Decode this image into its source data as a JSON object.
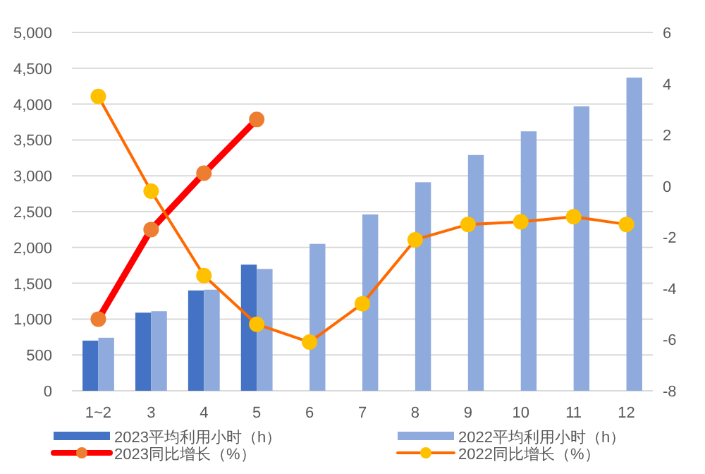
{
  "chart_data": {
    "type": "bar",
    "categories": [
      "1~2",
      "3",
      "4",
      "5",
      "6",
      "7",
      "8",
      "9",
      "10",
      "11",
      "12"
    ],
    "series": [
      {
        "name": "2023平均利用小时（h）",
        "color": "#4472c4",
        "values": [
          700,
          1090,
          1400,
          1760,
          null,
          null,
          null,
          null,
          null,
          null,
          null
        ]
      },
      {
        "name": "2022平均利用小时（h）",
        "color": "#8faadc",
        "values": [
          740,
          1110,
          1410,
          1700,
          2050,
          2460,
          2910,
          3290,
          3620,
          3970,
          4370
        ]
      },
      {
        "name": "2023同比增长（%）",
        "type": "line",
        "axis": "y2",
        "color": "#ff0000",
        "values": [
          -5.2,
          -1.7,
          0.5,
          2.6,
          null,
          null,
          null,
          null,
          null,
          null,
          null
        ]
      },
      {
        "name": "2022同比增长（%）",
        "type": "line",
        "axis": "y2",
        "color": "#ff6a00",
        "values": [
          3.5,
          -0.2,
          -3.5,
          -5.4,
          -6.1,
          -4.6,
          -2.1,
          -1.5,
          -1.4,
          -1.2,
          -1.5
        ]
      }
    ],
    "ylim": [
      0,
      5000
    ],
    "yticks": [
      {
        "value": 0,
        "label": "0"
      },
      {
        "value": 500,
        "label": "500"
      },
      {
        "value": 1000,
        "label": "1,000"
      },
      {
        "value": 1500,
        "label": "1,500"
      },
      {
        "value": 2000,
        "label": "2,000"
      },
      {
        "value": 2500,
        "label": "2,500"
      },
      {
        "value": 3000,
        "label": "3,000"
      },
      {
        "value": 3500,
        "label": "3,500"
      },
      {
        "value": 4000,
        "label": "4,000"
      },
      {
        "value": 4500,
        "label": "4,500"
      },
      {
        "value": 5000,
        "label": "5,000"
      }
    ],
    "y2lim": [
      -8,
      6
    ],
    "y2ticks": [
      -8,
      -6,
      -4,
      -2,
      0,
      2,
      4,
      6
    ],
    "grid": "y",
    "legend": "bottom",
    "marker": "circle"
  }
}
